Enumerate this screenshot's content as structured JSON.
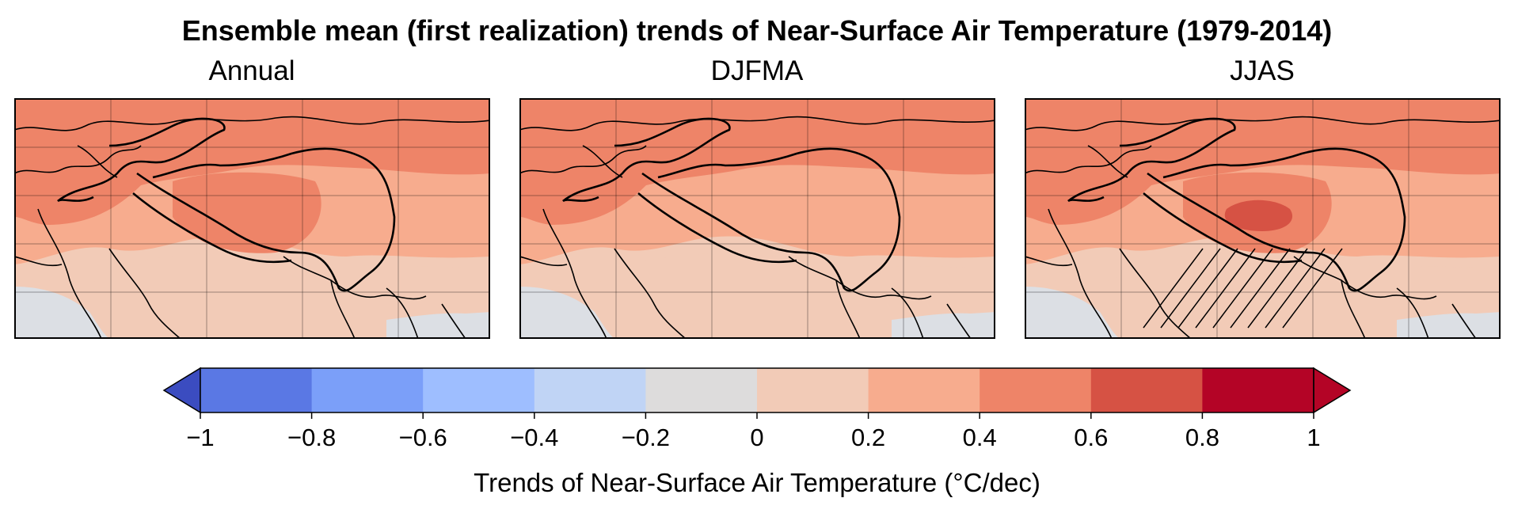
{
  "title": "Ensemble mean (first realization) trends of Near-Surface Air Temperature (1979-2014)",
  "panels": [
    {
      "title": "Annual",
      "hatched": false,
      "peak_level": 0.4
    },
    {
      "title": "DJFMA",
      "hatched": false,
      "peak_level": 0.4
    },
    {
      "title": "JJAS",
      "hatched": true,
      "peak_level": 0.6
    }
  ],
  "colorbar": {
    "label": "Trends of Near-Surface Air Temperature (°C/dec)",
    "ticks": [
      "−1",
      "−0.8",
      "−0.6",
      "−0.4",
      "−0.2",
      "0",
      "0.2",
      "0.4",
      "0.6",
      "0.8",
      "1"
    ],
    "colors": [
      "#3b4cc0",
      "#5a78e4",
      "#7b9ff9",
      "#9ebeff",
      "#c0d4f5",
      "#dddcdc",
      "#f2cbb7",
      "#f7ac8e",
      "#ee8468",
      "#d65244",
      "#b40426"
    ],
    "extend": "both"
  },
  "chart_data": {
    "type": "heatmap",
    "title": "Ensemble mean (first realization) trends of Near-Surface Air Temperature (1979-2014)",
    "panels": [
      "Annual",
      "DJFMA",
      "JJAS"
    ],
    "levels": [
      -1,
      -0.8,
      -0.6,
      -0.4,
      -0.2,
      0,
      0.2,
      0.4,
      0.6,
      0.8,
      1
    ],
    "colorbar_label": "Trends of Near-Surface Air Temperature (°C/dec)",
    "extend": "both"
  }
}
